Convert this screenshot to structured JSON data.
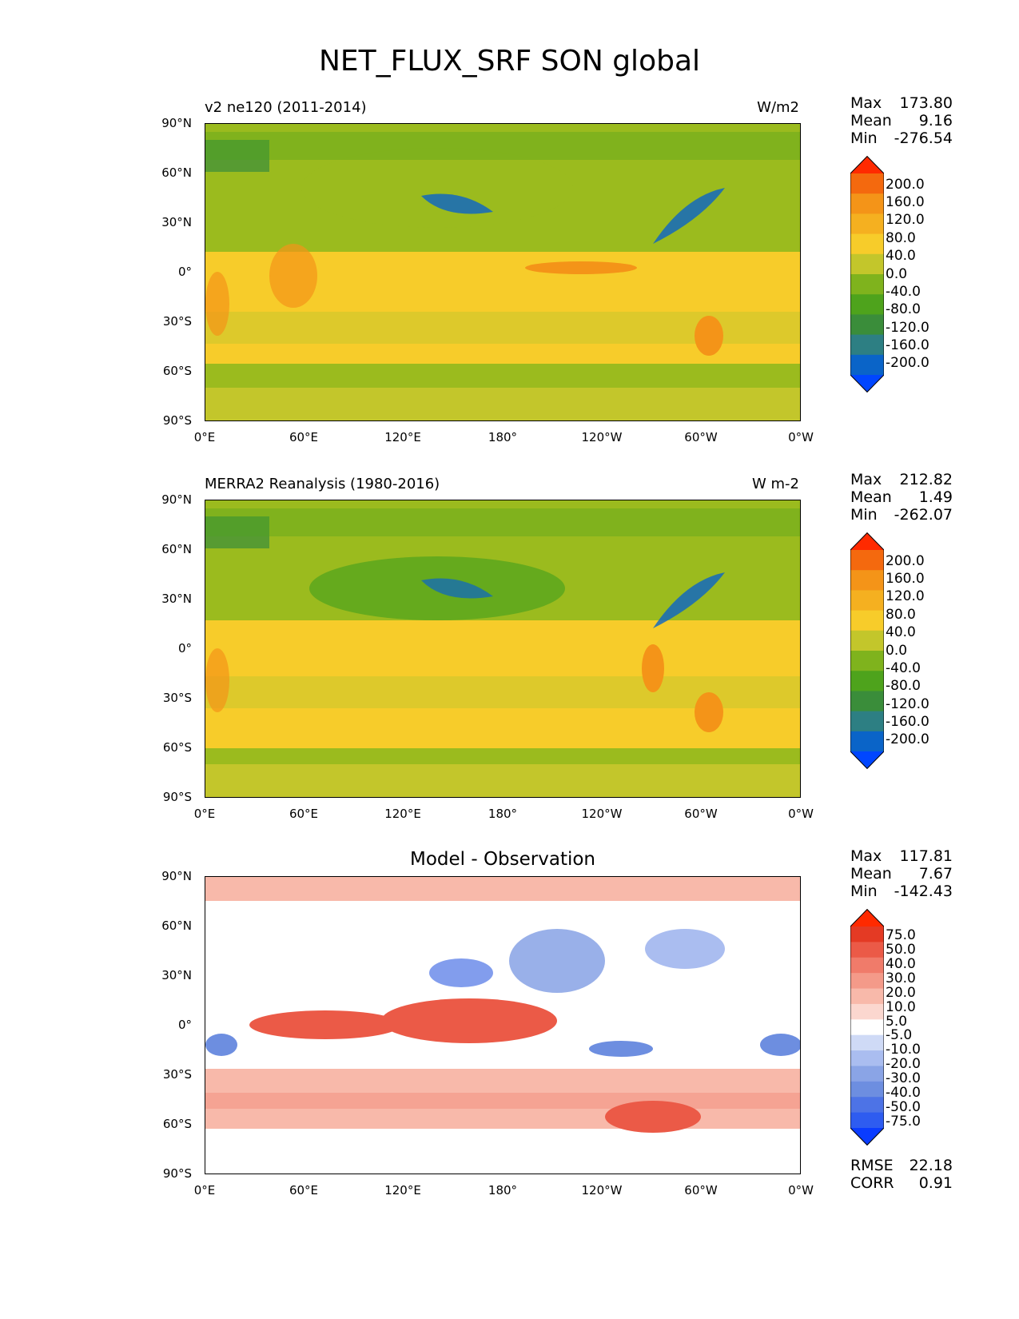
{
  "title": "NET_FLUX_SRF SON global",
  "lat_ticks": [
    "90°N",
    "60°N",
    "30°N",
    "0°",
    "30°S",
    "60°S",
    "90°S"
  ],
  "lon_ticks": [
    "0°E",
    "60°E",
    "120°E",
    "180°",
    "120°W",
    "60°W",
    "0°W"
  ],
  "colors": {
    "net_flux_levels": [
      "#0046ff",
      "#0a64c8",
      "#2d7f83",
      "#3a8d3a",
      "#4ea31c",
      "#7fb31d",
      "#c3c62b",
      "#f7cc2a",
      "#f5b020",
      "#f49418",
      "#f4690e",
      "#ff2a00"
    ],
    "diff_levels": [
      "#0a3cff",
      "#2e5cf0",
      "#4d73e6",
      "#6d8ee0",
      "#8aa4e6",
      "#aabdf0",
      "#cfdaf6",
      "#ffffff",
      "#fbd7cf",
      "#f8b9aa",
      "#f49a89",
      "#f07b6a",
      "#eb5a47",
      "#e43a24",
      "#ff2a00"
    ]
  },
  "chart_data": [
    {
      "type": "heatmap",
      "subtitle_left": "v2 ne120 (2011-2014)",
      "units": "W/m2",
      "stats": {
        "max_label": "Max",
        "max": "173.80",
        "mean_label": "Mean",
        "mean": "9.16",
        "min_label": "Min",
        "min": "-276.54"
      },
      "colorbar_labels": [
        "200.0",
        "160.0",
        "120.0",
        "80.0",
        "40.0",
        "0.0",
        "-40.0",
        "-80.0",
        "-120.0",
        "-160.0",
        "-200.0"
      ],
      "xlim": [
        0,
        360
      ],
      "ylim": [
        -90,
        90
      ]
    },
    {
      "type": "heatmap",
      "subtitle_left": "MERRA2 Reanalysis (1980-2016)",
      "units": "W m-2",
      "stats": {
        "max_label": "Max",
        "max": "212.82",
        "mean_label": "Mean",
        "mean": "1.49",
        "min_label": "Min",
        "min": "-262.07"
      },
      "colorbar_labels": [
        "200.0",
        "160.0",
        "120.0",
        "80.0",
        "40.0",
        "0.0",
        "-40.0",
        "-80.0",
        "-120.0",
        "-160.0",
        "-200.0"
      ],
      "xlim": [
        0,
        360
      ],
      "ylim": [
        -90,
        90
      ]
    },
    {
      "type": "heatmap",
      "title": "Model - Observation",
      "stats": {
        "max_label": "Max",
        "max": "117.81",
        "mean_label": "Mean",
        "mean": "7.67",
        "min_label": "Min",
        "min": "-142.43"
      },
      "colorbar_labels": [
        "75.0",
        "50.0",
        "40.0",
        "30.0",
        "20.0",
        "10.0",
        "5.0",
        "-5.0",
        "-10.0",
        "-20.0",
        "-30.0",
        "-40.0",
        "-50.0",
        "-75.0"
      ],
      "rmse_label": "RMSE",
      "rmse": "22.18",
      "corr_label": "CORR",
      "corr": "0.91",
      "xlim": [
        0,
        360
      ],
      "ylim": [
        -90,
        90
      ]
    }
  ]
}
